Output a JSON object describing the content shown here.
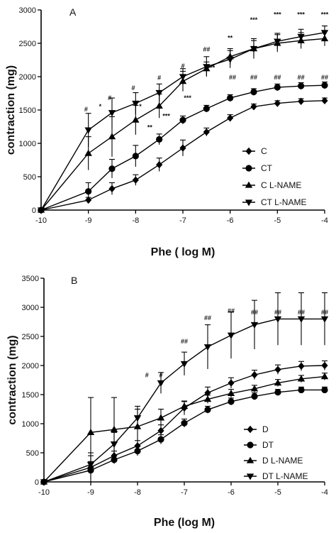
{
  "chart_data": [
    {
      "type": "line",
      "panel_label": "A",
      "xlabel": "Phe ( log M)",
      "ylabel": "contraction (mg)",
      "xlim": [
        -10,
        -4
      ],
      "ylim": [
        0,
        3000
      ],
      "x_ticks": [
        -10,
        -9,
        -8,
        -7,
        -6,
        -5,
        -4
      ],
      "y_ticks": [
        0,
        500,
        1000,
        1500,
        2000,
        2500,
        3000
      ],
      "x": [
        -10,
        -9,
        -8.5,
        -8,
        -7.5,
        -7,
        -6.5,
        -6,
        -5.5,
        -5,
        -4.5,
        -4
      ],
      "legend_position": "bottom-right",
      "series": [
        {
          "name": "C",
          "marker": "diamond",
          "values": [
            0,
            150,
            320,
            450,
            680,
            930,
            1170,
            1380,
            1550,
            1600,
            1630,
            1640
          ],
          "errors": [
            0,
            40,
            90,
            80,
            100,
            120,
            60,
            50,
            40,
            40,
            40,
            40
          ]
        },
        {
          "name": "CT",
          "marker": "circle",
          "values": [
            0,
            280,
            620,
            810,
            1060,
            1350,
            1520,
            1680,
            1770,
            1840,
            1860,
            1870
          ],
          "errors": [
            0,
            130,
            140,
            160,
            80,
            60,
            50,
            50,
            50,
            50,
            50,
            50
          ]
        },
        {
          "name": "C L-NAME",
          "marker": "triangle-up",
          "values": [
            0,
            850,
            1100,
            1350,
            1560,
            1930,
            2120,
            2300,
            2420,
            2500,
            2540,
            2570
          ],
          "errors": [
            0,
            250,
            300,
            220,
            180,
            150,
            100,
            120,
            150,
            130,
            120,
            110
          ]
        },
        {
          "name": "CT L-NAME",
          "marker": "triangle-down",
          "values": [
            0,
            1200,
            1460,
            1600,
            1760,
            2000,
            2150,
            2260,
            2420,
            2530,
            2600,
            2660
          ],
          "errors": [
            0,
            250,
            220,
            160,
            130,
            120,
            150,
            130,
            120,
            120,
            110,
            100
          ]
        }
      ],
      "annotations": [
        {
          "text": "#",
          "x": -9.05,
          "y": 1480
        },
        {
          "text": "*",
          "x": -8.75,
          "y": 1520
        },
        {
          "text": "#",
          "x": -8.55,
          "y": 1650
        },
        {
          "text": "#",
          "x": -8.05,
          "y": 1800
        },
        {
          "text": "*",
          "x": -7.9,
          "y": 1520
        },
        {
          "text": "**",
          "x": -7.7,
          "y": 1210
        },
        {
          "text": "#",
          "x": -7.5,
          "y": 1950
        },
        {
          "text": "***",
          "x": -7.35,
          "y": 1380
        },
        {
          "text": "#",
          "x": -7.0,
          "y": 2130
        },
        {
          "text": "***",
          "x": -6.9,
          "y": 1650
        },
        {
          "text": "##",
          "x": -6.5,
          "y": 2380
        },
        {
          "text": "***",
          "x": -6.4,
          "y": 2100
        },
        {
          "text": "**",
          "x": -6.0,
          "y": 2550
        },
        {
          "text": "***",
          "x": -6.0,
          "y": 2230
        },
        {
          "text": "##",
          "x": -5.95,
          "y": 1960
        },
        {
          "text": "##",
          "x": -5.5,
          "y": 1960
        },
        {
          "text": "***",
          "x": -5.5,
          "y": 2820
        },
        {
          "text": "***",
          "x": -5.0,
          "y": 2900
        },
        {
          "text": "##",
          "x": -5.0,
          "y": 1960
        },
        {
          "text": "***",
          "x": -4.5,
          "y": 2900
        },
        {
          "text": "##",
          "x": -4.5,
          "y": 1960
        },
        {
          "text": "***",
          "x": -4.0,
          "y": 2900
        },
        {
          "text": "##",
          "x": -4.0,
          "y": 1960
        }
      ]
    },
    {
      "type": "line",
      "panel_label": "B",
      "xlabel": "Phe (log M)",
      "ylabel": "contraction (mg)",
      "xlim": [
        -10,
        -4
      ],
      "ylim": [
        0,
        3500
      ],
      "x_ticks": [
        -10,
        -9,
        -8,
        -7,
        -6,
        -5,
        -4
      ],
      "y_ticks": [
        0,
        500,
        1000,
        1500,
        2000,
        2500,
        3000,
        3500
      ],
      "x": [
        -10,
        -9,
        -8.5,
        -8,
        -7.5,
        -7,
        -6.5,
        -6,
        -5.5,
        -5,
        -4.5,
        -4
      ],
      "legend_position": "bottom-right",
      "series": [
        {
          "name": "D",
          "marker": "diamond",
          "values": [
            0,
            250,
            450,
            620,
            880,
            1270,
            1530,
            1700,
            1840,
            1930,
            1990,
            2000
          ],
          "errors": [
            0,
            250,
            80,
            90,
            100,
            120,
            100,
            90,
            80,
            80,
            80,
            80
          ]
        },
        {
          "name": "DT",
          "marker": "circle",
          "values": [
            0,
            200,
            380,
            530,
            730,
            1010,
            1240,
            1380,
            1470,
            1540,
            1580,
            1580
          ],
          "errors": [
            0,
            150,
            70,
            80,
            80,
            70,
            60,
            60,
            60,
            50,
            50,
            50
          ]
        },
        {
          "name": "D L-NAME",
          "marker": "triangle-up",
          "values": [
            0,
            850,
            900,
            950,
            1100,
            1300,
            1420,
            1520,
            1600,
            1700,
            1770,
            1810
          ],
          "errors": [
            0,
            600,
            550,
            300,
            150,
            80,
            70,
            70,
            60,
            60,
            60,
            60
          ]
        },
        {
          "name": "DT L-NAME",
          "marker": "triangle-down",
          "values": [
            0,
            300,
            650,
            1100,
            1700,
            2030,
            2320,
            2520,
            2700,
            2800,
            2800,
            2800
          ],
          "errors": [
            0,
            150,
            200,
            200,
            180,
            200,
            380,
            400,
            420,
            450,
            450,
            450
          ]
        }
      ],
      "annotations": [
        {
          "text": "#",
          "x": -7.8,
          "y": 1800
        },
        {
          "text": "#",
          "x": -7.5,
          "y": 1800
        },
        {
          "text": "##",
          "x": -7.0,
          "y": 2380
        },
        {
          "text": "##",
          "x": -6.5,
          "y": 2780
        },
        {
          "text": "##",
          "x": -6.0,
          "y": 2900
        },
        {
          "text": "##",
          "x": -5.5,
          "y": 2880
        },
        {
          "text": "##",
          "x": -5.0,
          "y": 2880
        },
        {
          "text": "##",
          "x": -4.5,
          "y": 2880
        },
        {
          "text": "##",
          "x": -4.0,
          "y": 2880
        }
      ]
    }
  ]
}
